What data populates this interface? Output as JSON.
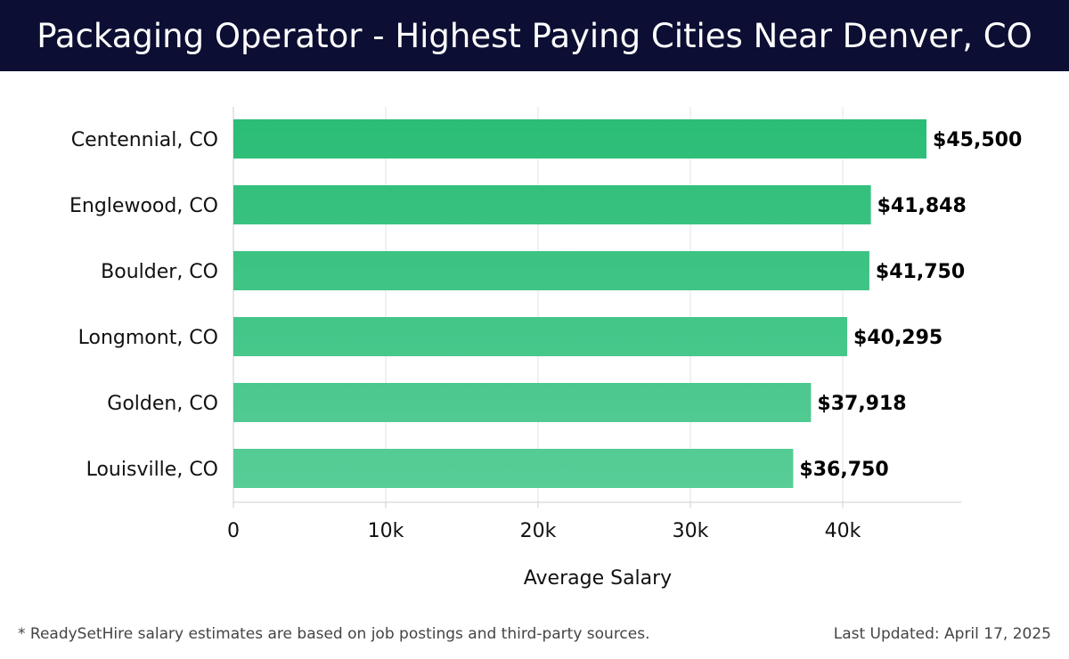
{
  "header": {
    "title": "Packaging Operator - Highest Paying Cities Near Denver, CO"
  },
  "footer": {
    "note": "* ReadySetHire salary estimates are based on job postings and third-party sources.",
    "updated": "Last Updated: April 17, 2025"
  },
  "colors": {
    "title_bg": "#0c0f33",
    "bar_top": "#2bbd76",
    "bar_bottom": "#58cd97",
    "grid": "#e3e3e3",
    "axis": "#cccccc",
    "text": "#111111"
  },
  "chart_data": {
    "type": "bar",
    "orientation": "horizontal",
    "categories": [
      "Centennial, CO",
      "Englewood, CO",
      "Boulder, CO",
      "Longmont, CO",
      "Golden, CO",
      "Louisville, CO"
    ],
    "values": [
      45500,
      41848,
      41750,
      40295,
      37918,
      36750
    ],
    "value_labels": [
      "$45,500",
      "$41,848",
      "$41,750",
      "$40,295",
      "$37,918",
      "$36,750"
    ],
    "xlabel": "Average Salary",
    "ylabel": "",
    "xlim": [
      0,
      48000
    ],
    "xticks": [
      0,
      10000,
      20000,
      30000,
      40000
    ],
    "xtick_labels": [
      "0",
      "10k",
      "20k",
      "30k",
      "40k"
    ],
    "grid": "vertical",
    "legend": "none"
  }
}
